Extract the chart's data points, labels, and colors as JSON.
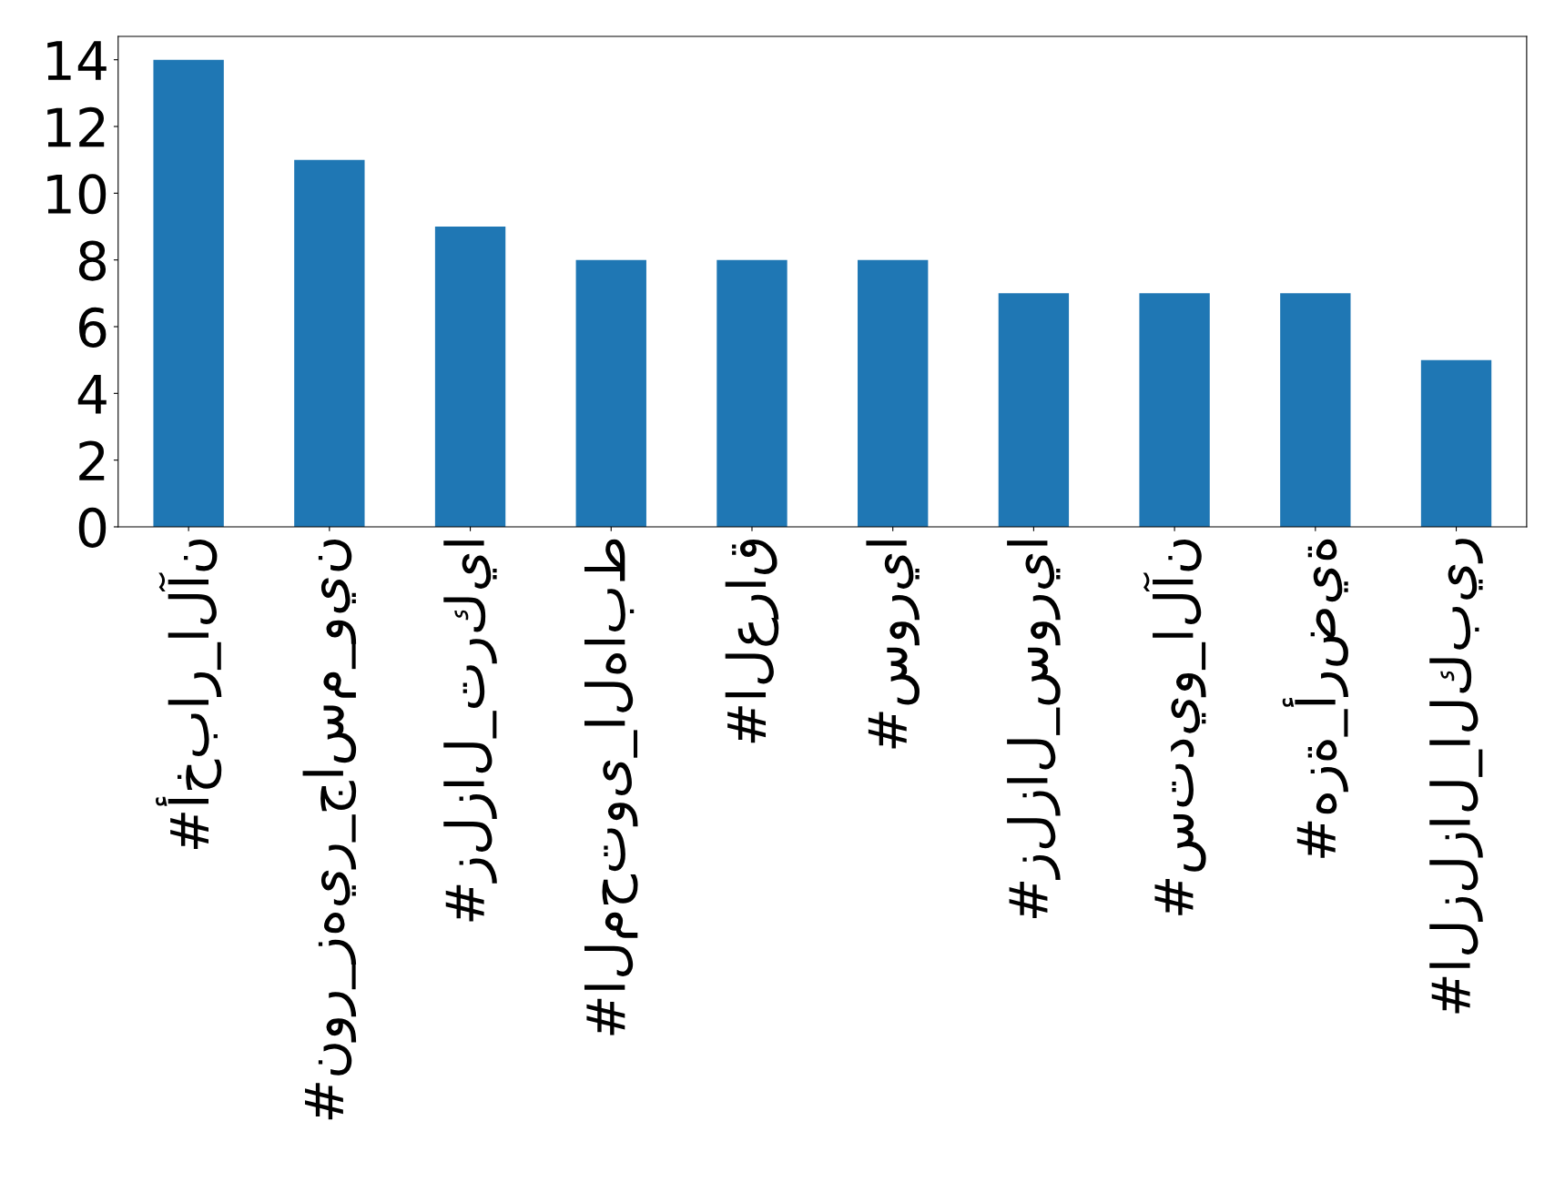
{
  "chart_data": {
    "type": "bar",
    "categories": [
      "#أخبار_الآن",
      "#نور_زهير_جاسم_وين",
      "#زلزال_تركيا",
      "#المحتوى_الهابط",
      "#العراق",
      "#سوريا",
      "#زلزال_سوريا",
      "#ستديو_الآن",
      "#هزة_أرضية",
      "#الزلزال_الكبير"
    ],
    "values": [
      14,
      11,
      9,
      8,
      8,
      8,
      7,
      7,
      7,
      5
    ],
    "color": "#1f77b4",
    "ylim": [
      0,
      14.7
    ],
    "yticks": [
      0,
      2,
      4,
      6,
      8,
      10,
      12,
      14
    ],
    "grid": false,
    "legend": false
  }
}
